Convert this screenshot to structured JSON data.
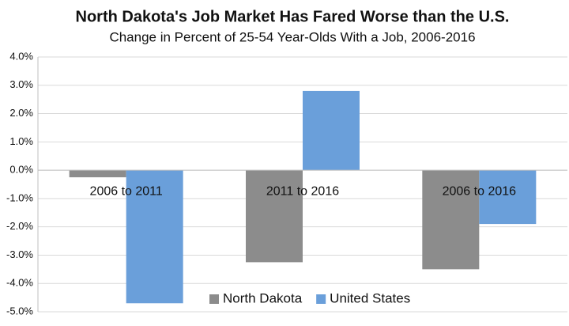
{
  "chart_data": {
    "type": "bar",
    "title": "North Dakota's Job Market Has Fared Worse than the U.S.",
    "subtitle": "Change in Percent of 25-54 Year-Olds With a Job, 2006-2016",
    "categories": [
      "2006 to 2011",
      "2011 to 2016",
      "2006 to 2016"
    ],
    "series": [
      {
        "name": "North Dakota",
        "color": "#8c8c8c",
        "values": [
          -0.25,
          -3.25,
          -3.5
        ]
      },
      {
        "name": "United States",
        "color": "#6a9fda",
        "values": [
          -4.7,
          2.8,
          -1.9
        ]
      }
    ],
    "ylim": [
      -5,
      4
    ],
    "yticks": [
      {
        "value": -5,
        "label": "-5.0%"
      },
      {
        "value": -4,
        "label": "-4.0%"
      },
      {
        "value": -3,
        "label": "-3.0%"
      },
      {
        "value": -2,
        "label": "-2.0%"
      },
      {
        "value": -1,
        "label": "-1.0%"
      },
      {
        "value": 0,
        "label": "0.0%"
      },
      {
        "value": 1,
        "label": "1.0%"
      },
      {
        "value": 2,
        "label": "2.0%"
      },
      {
        "value": 3,
        "label": "3.0%"
      },
      {
        "value": 4,
        "label": "4.0%"
      }
    ],
    "grid": true,
    "legend": "bottom"
  }
}
